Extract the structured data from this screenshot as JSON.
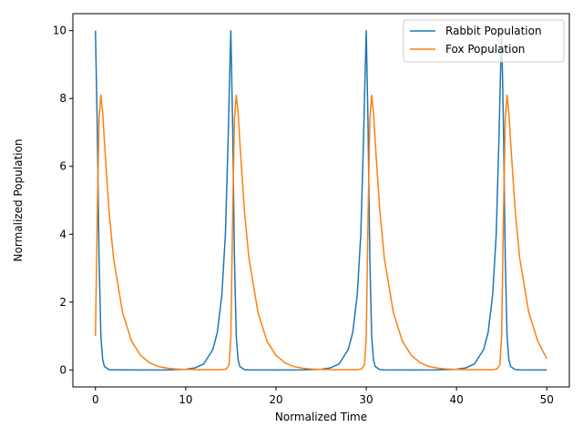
{
  "chart_data": {
    "type": "line",
    "title": "",
    "xlabel": "Normalized Time",
    "ylabel": "Normalized Population",
    "xlim": [
      -2.5,
      52.5
    ],
    "ylim": [
      -0.5,
      10.5
    ],
    "x_ticks": [
      0,
      10,
      20,
      30,
      40,
      50
    ],
    "y_ticks": [
      0,
      2,
      4,
      6,
      8,
      10
    ],
    "grid": false,
    "legend_position": "top-right",
    "series": [
      {
        "name": "Rabbit Population",
        "color": "#1f77b4",
        "points": [
          [
            0,
            10
          ],
          [
            0.2,
            7.2
          ],
          [
            0.4,
            3.3
          ],
          [
            0.6,
            1.0
          ],
          [
            0.8,
            0.3
          ],
          [
            1.0,
            0.1
          ],
          [
            1.5,
            0.01
          ],
          [
            2,
            0.002
          ],
          [
            5,
            0.001
          ],
          [
            8,
            0.004
          ],
          [
            10,
            0.02
          ],
          [
            11,
            0.06
          ],
          [
            12,
            0.18
          ],
          [
            13,
            0.6
          ],
          [
            13.5,
            1.1
          ],
          [
            14,
            2.2
          ],
          [
            14.4,
            4.0
          ],
          [
            14.7,
            6.8
          ],
          [
            14.9,
            9.0
          ],
          [
            15.0,
            10
          ],
          [
            15.2,
            7.2
          ],
          [
            15.4,
            3.3
          ],
          [
            15.6,
            1.0
          ],
          [
            15.8,
            0.3
          ],
          [
            16.0,
            0.1
          ],
          [
            16.5,
            0.01
          ],
          [
            17,
            0.002
          ],
          [
            20,
            0.001
          ],
          [
            23,
            0.004
          ],
          [
            25,
            0.02
          ],
          [
            26,
            0.06
          ],
          [
            27,
            0.18
          ],
          [
            28,
            0.6
          ],
          [
            28.5,
            1.1
          ],
          [
            29,
            2.2
          ],
          [
            29.4,
            4.0
          ],
          [
            29.7,
            6.8
          ],
          [
            29.9,
            9.0
          ],
          [
            30.0,
            10
          ],
          [
            30.2,
            7.2
          ],
          [
            30.4,
            3.3
          ],
          [
            30.6,
            1.0
          ],
          [
            30.8,
            0.3
          ],
          [
            31.0,
            0.1
          ],
          [
            31.5,
            0.01
          ],
          [
            32,
            0.002
          ],
          [
            35,
            0.001
          ],
          [
            38,
            0.004
          ],
          [
            40,
            0.02
          ],
          [
            41,
            0.06
          ],
          [
            42,
            0.18
          ],
          [
            43,
            0.6
          ],
          [
            43.5,
            1.1
          ],
          [
            44,
            2.2
          ],
          [
            44.4,
            4.0
          ],
          [
            44.7,
            6.8
          ],
          [
            44.9,
            9.0
          ],
          [
            45.0,
            10
          ],
          [
            45.2,
            7.2
          ],
          [
            45.4,
            3.3
          ],
          [
            45.6,
            1.0
          ],
          [
            45.8,
            0.3
          ],
          [
            46.0,
            0.1
          ],
          [
            46.5,
            0.01
          ],
          [
            47,
            0.002
          ],
          [
            50,
            0.001
          ]
        ]
      },
      {
        "name": "Fox Population",
        "color": "#ff7f0e",
        "points": [
          [
            0,
            1.0
          ],
          [
            0.2,
            4.5
          ],
          [
            0.4,
            7.4
          ],
          [
            0.6,
            8.1
          ],
          [
            0.8,
            7.6
          ],
          [
            1.0,
            6.7
          ],
          [
            1.5,
            4.7
          ],
          [
            2,
            3.3
          ],
          [
            3,
            1.7
          ],
          [
            4,
            0.85
          ],
          [
            5,
            0.43
          ],
          [
            6,
            0.21
          ],
          [
            7,
            0.1
          ],
          [
            8,
            0.05
          ],
          [
            9,
            0.025
          ],
          [
            10,
            0.015
          ],
          [
            11,
            0.009
          ],
          [
            12,
            0.006
          ],
          [
            13,
            0.005
          ],
          [
            14,
            0.008
          ],
          [
            14.5,
            0.03
          ],
          [
            14.8,
            0.15
          ],
          [
            15.0,
            1.0
          ],
          [
            15.2,
            4.5
          ],
          [
            15.4,
            7.4
          ],
          [
            15.6,
            8.1
          ],
          [
            15.8,
            7.6
          ],
          [
            16.0,
            6.7
          ],
          [
            16.5,
            4.7
          ],
          [
            17,
            3.3
          ],
          [
            18,
            1.7
          ],
          [
            19,
            0.85
          ],
          [
            20,
            0.43
          ],
          [
            21,
            0.21
          ],
          [
            22,
            0.1
          ],
          [
            23,
            0.05
          ],
          [
            24,
            0.025
          ],
          [
            25,
            0.015
          ],
          [
            26,
            0.009
          ],
          [
            27,
            0.006
          ],
          [
            28,
            0.005
          ],
          [
            29,
            0.008
          ],
          [
            29.5,
            0.03
          ],
          [
            29.8,
            0.15
          ],
          [
            30.0,
            1.0
          ],
          [
            30.2,
            4.5
          ],
          [
            30.4,
            7.4
          ],
          [
            30.6,
            8.1
          ],
          [
            30.8,
            7.6
          ],
          [
            31.0,
            6.7
          ],
          [
            31.5,
            4.7
          ],
          [
            32,
            3.3
          ],
          [
            33,
            1.7
          ],
          [
            34,
            0.85
          ],
          [
            35,
            0.43
          ],
          [
            36,
            0.21
          ],
          [
            37,
            0.1
          ],
          [
            38,
            0.05
          ],
          [
            39,
            0.025
          ],
          [
            40,
            0.015
          ],
          [
            41,
            0.009
          ],
          [
            42,
            0.006
          ],
          [
            43,
            0.005
          ],
          [
            44,
            0.008
          ],
          [
            44.5,
            0.03
          ],
          [
            44.8,
            0.15
          ],
          [
            45.0,
            1.0
          ],
          [
            45.2,
            4.5
          ],
          [
            45.4,
            7.4
          ],
          [
            45.6,
            8.1
          ],
          [
            45.8,
            7.6
          ],
          [
            46.0,
            6.7
          ],
          [
            46.5,
            4.7
          ],
          [
            47,
            3.3
          ],
          [
            48,
            1.7
          ],
          [
            49,
            0.85
          ],
          [
            50,
            0.33
          ]
        ]
      }
    ]
  }
}
